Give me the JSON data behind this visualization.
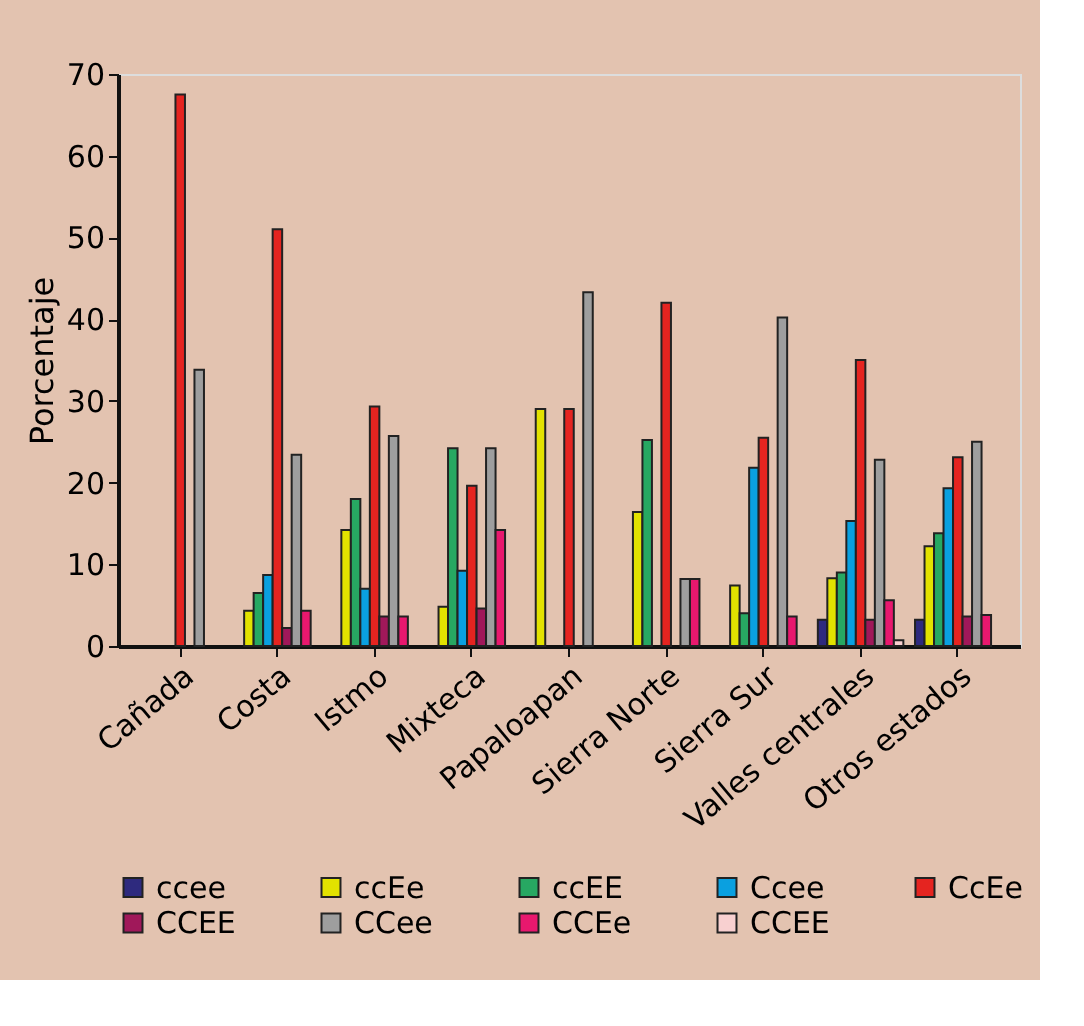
{
  "chart_data": {
    "type": "bar",
    "ylabel": "Porcentaje",
    "categories": [
      "Cañada",
      "Costa",
      "Istmo",
      "Mixteca",
      "Papaloapan",
      "Sierra Norte",
      "Sierra Sur",
      "Valles centrales",
      "Otros estados"
    ],
    "ylim": [
      0,
      70
    ],
    "yticks": [
      0,
      10,
      20,
      30,
      40,
      50,
      60,
      70
    ],
    "grid": false,
    "legend": "bottom",
    "series": [
      {
        "name": "ccee",
        "color": "#2e2a7e",
        "values": [
          null,
          null,
          null,
          null,
          null,
          null,
          null,
          3.2,
          3.2
        ]
      },
      {
        "name": "ccEe",
        "color": "#e2e200",
        "values": [
          null,
          4.3,
          14.2,
          4.8,
          29,
          16.4,
          7.4,
          8.3,
          12.2
        ]
      },
      {
        "name": "ccEE",
        "color": "#27a862",
        "values": [
          null,
          6.5,
          18,
          24.2,
          null,
          25.2,
          4,
          9,
          13.8
        ]
      },
      {
        "name": "Ccee",
        "color": "#0aa0e0",
        "values": [
          null,
          8.7,
          7,
          9.2,
          null,
          null,
          21.8,
          15.3,
          19.3
        ]
      },
      {
        "name": "CcEe",
        "color": "#e52420",
        "values": [
          67.5,
          51,
          29.3,
          19.6,
          29,
          42,
          25.5,
          35,
          23.1
        ]
      },
      {
        "name": "CCEE",
        "color": "#a0185a",
        "values": [
          null,
          2.2,
          3.6,
          4.6,
          null,
          null,
          null,
          3.2,
          3.6
        ]
      },
      {
        "name": "CCee",
        "color": "#9e9e9e",
        "values": [
          33.8,
          23.4,
          25.7,
          24.2,
          43.3,
          8.2,
          40.2,
          22.8,
          25
        ]
      },
      {
        "name": "CCEe",
        "color": "#e8186e",
        "values": [
          null,
          4.3,
          3.6,
          14.2,
          null,
          8.2,
          3.6,
          5.6,
          3.8
        ]
      },
      {
        "name": "CCEE",
        "color": "#f8d0d0",
        "values": [
          null,
          null,
          null,
          null,
          null,
          null,
          null,
          0.7,
          null
        ]
      }
    ]
  }
}
